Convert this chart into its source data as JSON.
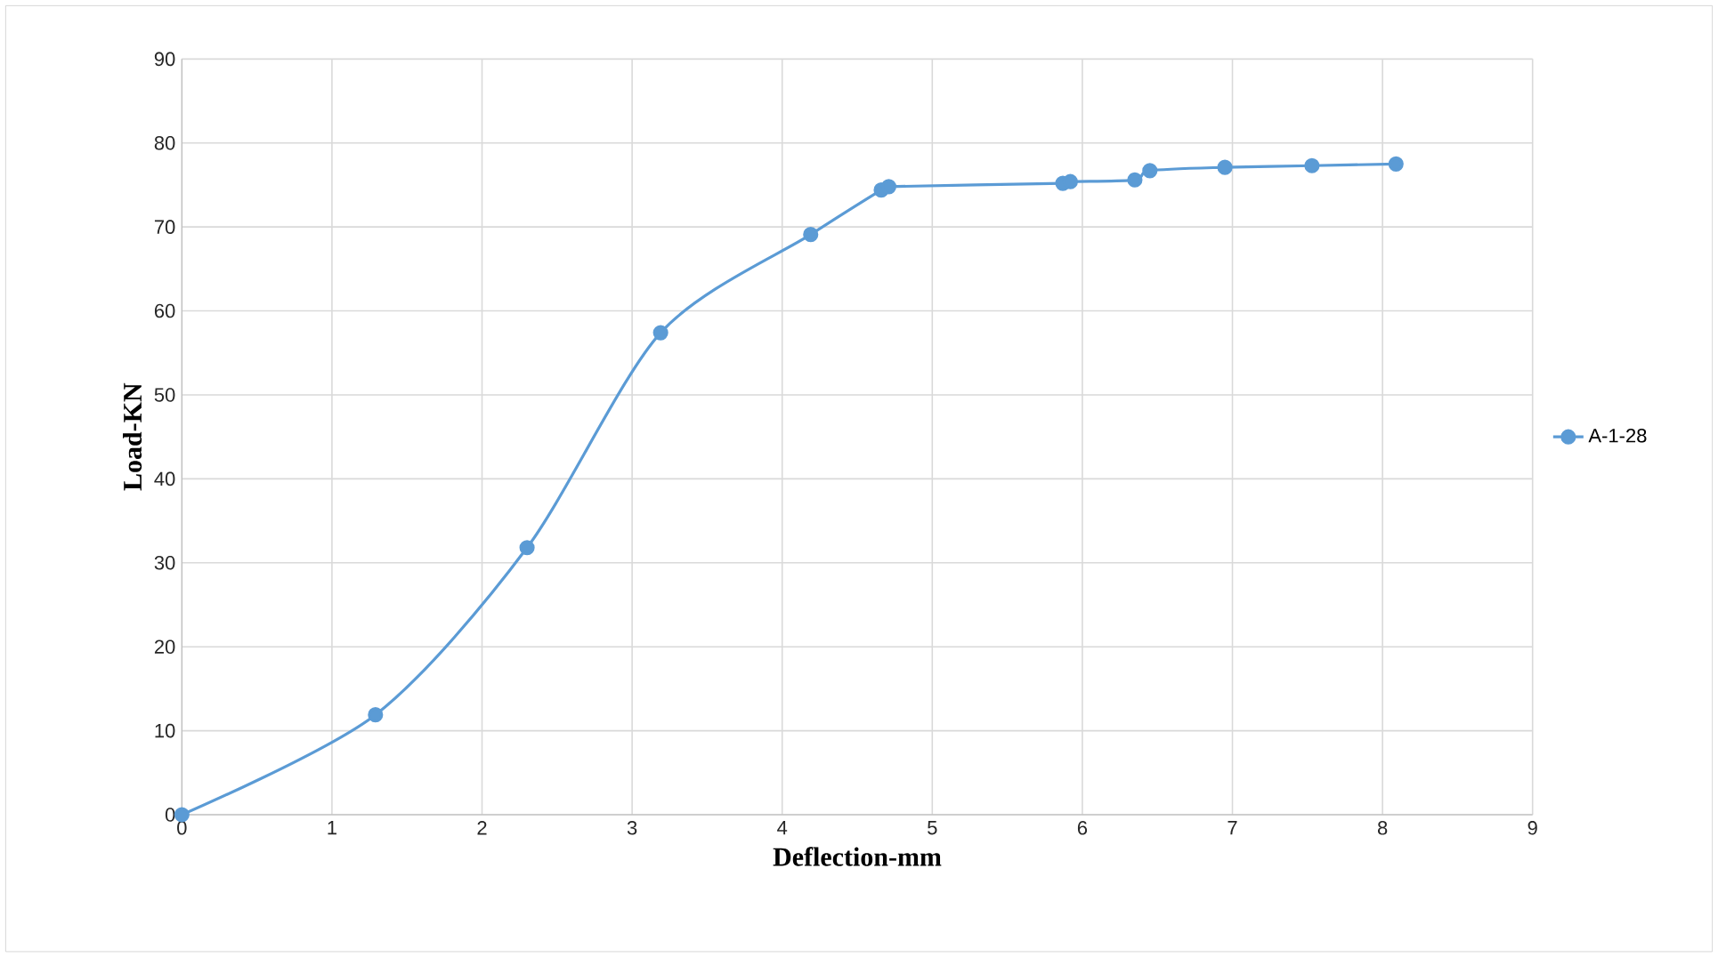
{
  "chart_data": {
    "type": "line",
    "xlabel": "Deflection-mm",
    "ylabel": "Load-KN",
    "xlim": [
      0,
      9
    ],
    "ylim": [
      0,
      90
    ],
    "xticks": [
      0,
      1,
      2,
      3,
      4,
      5,
      6,
      7,
      8,
      9
    ],
    "yticks": [
      0,
      10,
      20,
      30,
      40,
      50,
      60,
      70,
      80,
      90
    ],
    "grid": true,
    "legend": "right",
    "marker": "circle",
    "line_style": "solid",
    "series": [
      {
        "name": "A-1-28",
        "color": "#5b9bd5",
        "x": [
          0,
          1.29,
          2.3,
          3.19,
          4.19,
          4.66,
          4.71,
          5.87,
          5.92,
          6.35,
          6.45,
          6.95,
          7.53,
          8.09
        ],
        "values": [
          0,
          11.9,
          31.8,
          57.4,
          69.1,
          74.4,
          74.8,
          75.2,
          75.4,
          75.6,
          76.7,
          77.1,
          77.3,
          77.5
        ]
      }
    ]
  }
}
